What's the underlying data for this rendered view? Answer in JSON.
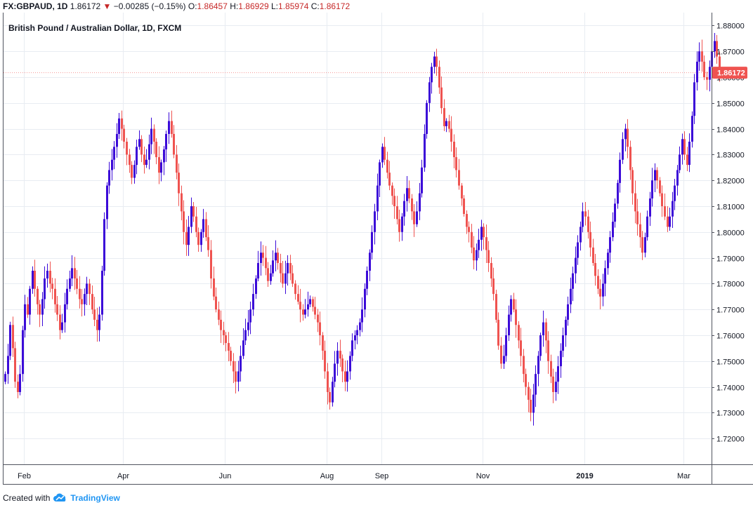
{
  "header": {
    "symbol": "FX:GBPAUD, 1D",
    "last": "1.86172",
    "change": "−0.00285 (−0.15%)",
    "o_label": "O:",
    "o_value": "1.86457",
    "h_label": "H:",
    "h_value": "1.86929",
    "l_label": "L:",
    "l_value": "1.85974",
    "c_label": "C:",
    "c_value": "1.86172"
  },
  "colors": {
    "up": "#3b0ad8",
    "down": "#ef5350",
    "grid": "#e8ecf2",
    "price_tag": "#ef5350"
  },
  "footer": {
    "created_with": "Created with",
    "brand": "TradingView",
    "brand_icon": "tradingview-cloud-icon"
  },
  "chart_data": {
    "type": "candlestick",
    "title": "British Pound / Australian Dollar, 1D, FXCM",
    "ylim": [
      1.71,
      1.885
    ],
    "y_ticks": [
      "1.72000",
      "1.73000",
      "1.74000",
      "1.75000",
      "1.76000",
      "1.77000",
      "1.78000",
      "1.79000",
      "1.80000",
      "1.81000",
      "1.82000",
      "1.83000",
      "1.84000",
      "1.85000",
      "1.86000",
      "1.87000",
      "1.88000"
    ],
    "x_ticks": [
      {
        "label": "Feb",
        "index": 8,
        "bold": false
      },
      {
        "label": "Apr",
        "index": 48,
        "bold": false
      },
      {
        "label": "Jun",
        "index": 89,
        "bold": false
      },
      {
        "label": "Aug",
        "index": 130,
        "bold": false
      },
      {
        "label": "Sep",
        "index": 152,
        "bold": false
      },
      {
        "label": "Nov",
        "index": 193,
        "bold": false
      },
      {
        "label": "2019",
        "index": 234,
        "bold": true
      },
      {
        "label": "Mar",
        "index": 274,
        "bold": false
      }
    ],
    "last_price": 1.86172,
    "last_price_label": "1.86172",
    "grid": true,
    "closes": [
      1.745,
      1.752,
      1.764,
      1.755,
      1.742,
      1.738,
      1.745,
      1.762,
      1.772,
      1.768,
      1.778,
      1.785,
      1.778,
      1.772,
      1.768,
      1.774,
      1.782,
      1.785,
      1.78,
      1.778,
      1.772,
      1.768,
      1.762,
      1.765,
      1.772,
      1.778,
      1.782,
      1.786,
      1.782,
      1.778,
      1.774,
      1.772,
      1.776,
      1.78,
      1.776,
      1.77,
      1.766,
      1.762,
      1.768,
      1.785,
      1.805,
      1.818,
      1.824,
      1.828,
      1.833,
      1.838,
      1.844,
      1.84,
      1.835,
      1.83,
      1.826,
      1.821,
      1.826,
      1.833,
      1.836,
      1.83,
      1.826,
      1.828,
      1.834,
      1.84,
      1.835,
      1.829,
      1.823,
      1.827,
      1.832,
      1.838,
      1.843,
      1.838,
      1.83,
      1.823,
      1.815,
      1.808,
      1.8,
      1.795,
      1.802,
      1.81,
      1.806,
      1.8,
      1.795,
      1.8,
      1.805,
      1.798,
      1.793,
      1.782,
      1.775,
      1.77,
      1.766,
      1.762,
      1.76,
      1.757,
      1.754,
      1.75,
      1.746,
      1.742,
      1.746,
      1.752,
      1.758,
      1.762,
      1.765,
      1.77,
      1.776,
      1.782,
      1.788,
      1.792,
      1.79,
      1.786,
      1.781,
      1.784,
      1.789,
      1.792,
      1.788,
      1.784,
      1.78,
      1.784,
      1.788,
      1.784,
      1.78,
      1.776,
      1.773,
      1.77,
      1.768,
      1.77,
      1.772,
      1.774,
      1.771,
      1.768,
      1.765,
      1.76,
      1.754,
      1.746,
      1.738,
      1.734,
      1.742,
      1.749,
      1.754,
      1.751,
      1.746,
      1.742,
      1.746,
      1.752,
      1.758,
      1.76,
      1.762,
      1.765,
      1.77,
      1.778,
      1.785,
      1.792,
      1.8,
      1.808,
      1.818,
      1.827,
      1.833,
      1.828,
      1.823,
      1.818,
      1.814,
      1.81,
      1.805,
      1.8,
      1.806,
      1.812,
      1.817,
      1.813,
      1.808,
      1.803,
      1.808,
      1.815,
      1.825,
      1.838,
      1.85,
      1.858,
      1.864,
      1.868,
      1.864,
      1.856,
      1.848,
      1.841,
      1.843,
      1.84,
      1.835,
      1.829,
      1.824,
      1.818,
      1.813,
      1.807,
      1.802,
      1.8,
      1.794,
      1.789,
      1.793,
      1.797,
      1.802,
      1.798,
      1.793,
      1.788,
      1.782,
      1.776,
      1.766,
      1.756,
      1.749,
      1.752,
      1.76,
      1.768,
      1.774,
      1.77,
      1.764,
      1.758,
      1.752,
      1.745,
      1.74,
      1.735,
      1.73,
      1.737,
      1.745,
      1.752,
      1.76,
      1.765,
      1.758,
      1.75,
      1.744,
      1.738,
      1.742,
      1.748,
      1.754,
      1.76,
      1.766,
      1.772,
      1.778,
      1.784,
      1.79,
      1.796,
      1.802,
      1.808,
      1.806,
      1.8,
      1.794,
      1.788,
      1.783,
      1.778,
      1.775,
      1.78,
      1.786,
      1.792,
      1.798,
      1.804,
      1.811,
      1.819,
      1.828,
      1.836,
      1.84,
      1.833,
      1.824,
      1.815,
      1.808,
      1.803,
      1.798,
      1.792,
      1.798,
      1.806,
      1.813,
      1.82,
      1.824,
      1.82,
      1.815,
      1.81,
      1.806,
      1.802,
      1.806,
      1.812,
      1.818,
      1.824,
      1.83,
      1.836,
      1.83,
      1.826,
      1.835,
      1.845,
      1.858,
      1.866,
      1.87,
      1.866,
      1.86,
      1.859,
      1.864,
      1.87,
      1.874,
      1.868,
      1.862
    ]
  }
}
